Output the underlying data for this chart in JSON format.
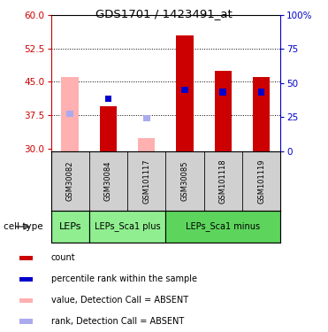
{
  "title": "GDS1701 / 1423491_at",
  "samples": [
    "GSM30082",
    "GSM30084",
    "GSM101117",
    "GSM30085",
    "GSM101118",
    "GSM101119"
  ],
  "cell_types": [
    {
      "label": "LEPs",
      "span": [
        0,
        1
      ],
      "color": "#90EE90"
    },
    {
      "label": "LEPs_Sca1 plus",
      "span": [
        1,
        3
      ],
      "color": "#90EE90"
    },
    {
      "label": "LEPs_Sca1 minus",
      "span": [
        3,
        6
      ],
      "color": "#5DD55D"
    }
  ],
  "ylim_left": [
    29.5,
    60
  ],
  "ylim_right": [
    0,
    100
  ],
  "yticks_left": [
    30,
    37.5,
    45,
    52.5,
    60
  ],
  "yticks_right": [
    0,
    25,
    50,
    75,
    100
  ],
  "red_bars_values": [
    null,
    39.5,
    null,
    55.5,
    47.5,
    46.0
  ],
  "red_bars_bottoms": [
    null,
    29.5,
    null,
    29.5,
    29.5,
    29.5
  ],
  "pink_bars_values": [
    46.0,
    null,
    32.5,
    null,
    null,
    null
  ],
  "pink_bars_bottoms": [
    29.5,
    null,
    29.5,
    null,
    null,
    null
  ],
  "blue_bars_values": [
    null,
    42.0,
    null,
    44.0,
    43.5,
    43.5
  ],
  "blue_bars_bottoms": [
    null,
    40.5,
    null,
    42.5,
    42.0,
    42.0
  ],
  "lblue_bars_values": [
    38.5,
    null,
    37.5,
    null,
    null,
    null
  ],
  "lblue_bars_bottoms": [
    37.2,
    null,
    36.2,
    null,
    null,
    null
  ],
  "bar_color_red": "#cc0000",
  "bar_color_pink": "#ffb0b0",
  "bar_color_blue": "#0000cc",
  "bar_color_lightblue": "#aaaaee",
  "left_axis_color": "#cc0000",
  "right_axis_color": "#0000cc",
  "legend_labels": [
    "count",
    "percentile rank within the sample",
    "value, Detection Call = ABSENT",
    "rank, Detection Call = ABSENT"
  ]
}
